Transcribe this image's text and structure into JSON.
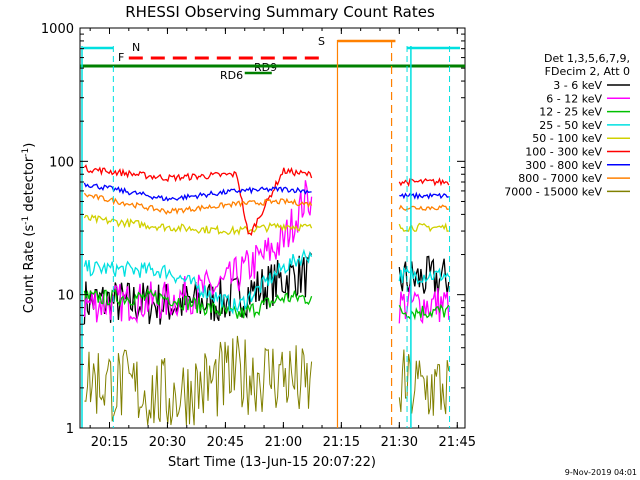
{
  "chart_data": {
    "type": "line",
    "title": "RHESSI Observing Summary Count Rates",
    "xlabel": "Start Time (13-Jun-15 20:07:22)",
    "ylabel_main": "Count Rate (s",
    "ylabel_sup1": "-1",
    "ylabel_mid": " detector",
    "ylabel_sup2": "-1",
    "ylabel_end": ")",
    "yscale": "log",
    "ylim": [
      1,
      1000
    ],
    "x_range_minutes": [
      "20:07",
      "21:47"
    ],
    "x_ticks": [
      "20:15",
      "20:30",
      "20:45",
      "21:00",
      "21:15",
      "21:30",
      "21:45"
    ],
    "y_ticks": [
      "1",
      "10",
      "100",
      "1000"
    ],
    "legend_header": [
      "Det 1,3,5,6,7,9,",
      "FDecim 2, Att 0"
    ],
    "series": [
      {
        "name": "3 - 6 keV",
        "color": "#000000",
        "values": [
          [
            20.1,
            9
          ],
          [
            20.5,
            8.5
          ],
          [
            20.75,
            9
          ],
          [
            20.95,
            12
          ],
          [
            21.05,
            14
          ],
          [
            21.5,
            13
          ]
        ]
      },
      {
        "name": "6 - 12 keV",
        "color": "#ff00ff",
        "values": [
          [
            20.1,
            8.5
          ],
          [
            20.5,
            9
          ],
          [
            20.75,
            12
          ],
          [
            21.0,
            25
          ],
          [
            21.1,
            55
          ],
          [
            21.5,
            8.5
          ]
        ]
      },
      {
        "name": "12 - 25 keV",
        "color": "#00c000",
        "values": [
          [
            20.1,
            9.5
          ],
          [
            20.5,
            9.5
          ],
          [
            20.8,
            7
          ],
          [
            21.0,
            9.5
          ],
          [
            21.1,
            9.5
          ],
          [
            21.5,
            7.5
          ]
        ]
      },
      {
        "name": "25 - 50 keV",
        "color": "#00e0e0",
        "values": [
          [
            20.1,
            16
          ],
          [
            20.5,
            15
          ],
          [
            20.8,
            8
          ],
          [
            21.0,
            16
          ],
          [
            21.1,
            20
          ],
          [
            21.5,
            14
          ]
        ]
      },
      {
        "name": "50 - 100 keV",
        "color": "#d0d000",
        "values": [
          [
            20.1,
            38
          ],
          [
            20.5,
            32
          ],
          [
            20.8,
            30
          ],
          [
            21.0,
            33
          ],
          [
            21.1,
            32
          ],
          [
            21.5,
            32
          ]
        ]
      },
      {
        "name": "100 - 300 keV",
        "color": "#ff0000",
        "values": [
          [
            20.1,
            90
          ],
          [
            20.5,
            75
          ],
          [
            20.8,
            80
          ],
          [
            20.85,
            27
          ],
          [
            21.0,
            85
          ],
          [
            21.1,
            80
          ],
          [
            21.5,
            70
          ]
        ]
      },
      {
        "name": "300 - 800 keV",
        "color": "#0000ff",
        "values": [
          [
            20.1,
            70
          ],
          [
            20.5,
            52
          ],
          [
            20.8,
            60
          ],
          [
            21.0,
            62
          ],
          [
            21.1,
            60
          ],
          [
            21.5,
            55
          ]
        ]
      },
      {
        "name": "800 - 7000 keV",
        "color": "#ff8000",
        "values": [
          [
            20.1,
            58
          ],
          [
            20.5,
            42
          ],
          [
            20.8,
            48
          ],
          [
            21.0,
            50
          ],
          [
            21.1,
            48
          ],
          [
            21.5,
            45
          ]
        ]
      },
      {
        "name": "7000 - 15000 keV",
        "color": "#808000",
        "values": [
          [
            20.1,
            2.5
          ],
          [
            20.5,
            1.7
          ],
          [
            20.8,
            2.5
          ],
          [
            21.0,
            2.5
          ],
          [
            21.1,
            2
          ],
          [
            21.5,
            2
          ]
        ]
      }
    ],
    "annotations": {
      "N": "N",
      "F": "F",
      "S": "S",
      "RD6": "RD6",
      "RD9": "RD9",
      "colors": {
        "N": "#00e0e0",
        "F": "#ff0000",
        "S": "#ff8000",
        "RD": "#008000"
      }
    },
    "timestamp": "9-Nov-2019 04:01"
  }
}
